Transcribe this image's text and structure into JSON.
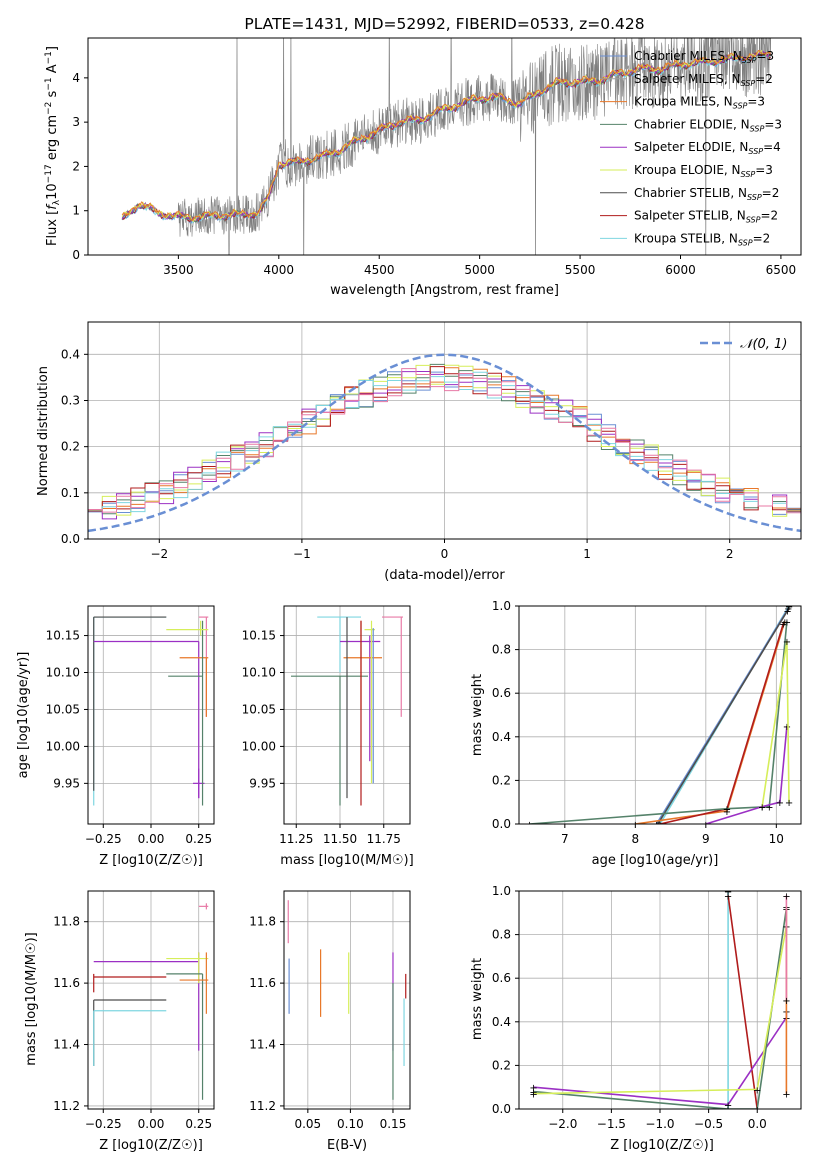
{
  "colors": {
    "Chabrier MILES": "#6a8fd4",
    "Salpeter MILES": "#9e9e9e",
    "Kroupa MILES": "#e8782a",
    "Chabrier ELODIE": "#55826a",
    "Salpeter ELODIE": "#9b30c4",
    "Kroupa ELODIE": "#d6ee5a",
    "Chabrier STELIB": "#4d4d4d",
    "Salpeter STELIB": "#b01c1c",
    "Kroupa STELIB": "#7fd6e0",
    "gaussian": "#6a8fd4",
    "pink": "#e87aa6"
  },
  "chart_data": [
    {
      "id": "spectrum",
      "type": "line",
      "title": "PLATE=1431, MJD=52992, FIBERID=0533, z=0.428",
      "xlabel": "wavelength [Angstrom, rest frame]",
      "ylabel_parts": [
        "Flux [",
        "f",
        "λ",
        "10",
        "−17",
        " erg cm",
        "−2",
        " s",
        "−1",
        " A",
        "−1",
        "]"
      ],
      "xlim": [
        3050,
        6600
      ],
      "ylim": [
        0,
        4.9
      ],
      "xticks": [
        3500,
        4000,
        4500,
        5000,
        5500,
        6000,
        6500
      ],
      "yticks": [
        0,
        1,
        2,
        3,
        4
      ],
      "legend": [
        "Chabrier MILES, N_SSP=3",
        "Salpeter MILES, N_SSP=2",
        "Kroupa MILES, N_SSP=3",
        "Chabrier ELODIE, N_SSP=3",
        "Salpeter ELODIE, N_SSP=4",
        "Kroupa ELODIE, N_SSP=3",
        "Chabrier STELIB, N_SSP=2",
        "Salpeter STELIB, N_SSP=2",
        "Kroupa STELIB, N_SSP=2"
      ],
      "legend_items": [
        {
          "model": "Chabrier MILES",
          "n": "3"
        },
        {
          "model": "Salpeter MILES",
          "n": "2"
        },
        {
          "model": "Kroupa MILES",
          "n": "3"
        },
        {
          "model": "Chabrier ELODIE",
          "n": "3"
        },
        {
          "model": "Salpeter ELODIE",
          "n": "4"
        },
        {
          "model": "Kroupa ELODIE",
          "n": "3"
        },
        {
          "model": "Chabrier STELIB",
          "n": "2"
        },
        {
          "model": "Salpeter STELIB",
          "n": "2"
        },
        {
          "model": "Kroupa STELIB",
          "n": "2"
        }
      ],
      "legend_placement": "upper right",
      "continuum_knots": [
        [
          3220,
          0.8
        ],
        [
          3300,
          1.15
        ],
        [
          3400,
          0.95
        ],
        [
          3500,
          0.85
        ],
        [
          3600,
          0.85
        ],
        [
          3700,
          0.9
        ],
        [
          3800,
          0.9
        ],
        [
          3900,
          0.95
        ],
        [
          3950,
          1.3
        ],
        [
          4000,
          2.05
        ],
        [
          4100,
          2.1
        ],
        [
          4200,
          2.2
        ],
        [
          4300,
          2.35
        ],
        [
          4400,
          2.6
        ],
        [
          4500,
          2.8
        ],
        [
          4600,
          3.0
        ],
        [
          4700,
          3.05
        ],
        [
          4800,
          3.25
        ],
        [
          4900,
          3.4
        ],
        [
          5000,
          3.55
        ],
        [
          5100,
          3.55
        ],
        [
          5200,
          3.4
        ],
        [
          5300,
          3.7
        ],
        [
          5400,
          3.9
        ],
        [
          5500,
          3.9
        ],
        [
          5600,
          3.95
        ],
        [
          5700,
          4.1
        ],
        [
          5800,
          4.2
        ],
        [
          5900,
          4.2
        ],
        [
          6000,
          4.3
        ],
        [
          6100,
          4.35
        ],
        [
          6200,
          4.4
        ],
        [
          6300,
          4.45
        ],
        [
          6400,
          4.5
        ],
        [
          6450,
          4.55
        ]
      ]
    },
    {
      "id": "residuals",
      "type": "histogram",
      "xlabel": "(data-model)/error",
      "ylabel": "Normed distribution",
      "xlim": [
        -2.5,
        2.5
      ],
      "ylim": [
        0,
        0.47
      ],
      "xticks": [
        -2,
        -1,
        0,
        1,
        2
      ],
      "yticks": [
        0.0,
        0.1,
        0.2,
        0.3,
        0.4
      ],
      "grid": true,
      "legend": [
        "𝒩(0, 1)"
      ],
      "legend_placement": "upper right",
      "bin_width": 0.1,
      "models": [
        "Chabrier MILES",
        "Kroupa MILES",
        "Chabrier ELODIE",
        "Salpeter ELODIE",
        "Kroupa ELODIE",
        "Salpeter STELIB",
        "Kroupa STELIB",
        "pink"
      ]
    },
    {
      "id": "age-vs-Z",
      "type": "errorbar",
      "xlabel": "Z [log10(Z/Z☉)]",
      "ylabel": "age  [log10(age/yr)]",
      "xlim": [
        -0.33,
        0.33
      ],
      "ylim": [
        9.895,
        10.19
      ],
      "xticks": [
        -0.25,
        0.0,
        0.25
      ],
      "yticks": [
        9.95,
        10.0,
        10.05,
        10.1,
        10.15
      ],
      "grid": true,
      "bars": [
        {
          "model": "Kroupa STELIB",
          "x": -0.3,
          "xlo": -0.3,
          "xhi": 0.08,
          "y": 10.175,
          "ylo": 9.92,
          "yhi": 10.175
        },
        {
          "model": "Chabrier STELIB",
          "x": -0.3,
          "xlo": -0.3,
          "xhi": 0.08,
          "y": 10.175,
          "ylo": 9.94,
          "yhi": 10.175
        },
        {
          "model": "Salpeter ELODIE",
          "x": 0.25,
          "xlo": -0.3,
          "xhi": 0.25,
          "y": 10.142,
          "ylo": 9.93,
          "yhi": 10.142
        },
        {
          "model": "Salpeter ELODIE",
          "x": 0.25,
          "xlo": 0.22,
          "xhi": 0.28,
          "y": 9.95,
          "ylo": 9.93,
          "yhi": 9.97
        },
        {
          "model": "pink",
          "x": 0.29,
          "xlo": 0.25,
          "xhi": 0.3,
          "y": 10.175,
          "ylo": 10.04,
          "yhi": 10.175
        },
        {
          "model": "Kroupa MILES",
          "x": 0.29,
          "xlo": 0.15,
          "xhi": 0.3,
          "y": 10.12,
          "ylo": 10.04,
          "yhi": 10.12
        },
        {
          "model": "Chabrier ELODIE",
          "x": 0.27,
          "xlo": 0.09,
          "xhi": 0.27,
          "y": 10.095,
          "ylo": 9.92,
          "yhi": 10.17
        },
        {
          "model": "Kroupa ELODIE",
          "x": 0.26,
          "xlo": 0.08,
          "xhi": 0.3,
          "y": 10.158,
          "ylo": 10.15,
          "yhi": 10.17
        }
      ]
    },
    {
      "id": "age-vs-mass",
      "type": "errorbar",
      "xlabel": "mass [log10(M/M☉)]",
      "ylabel": "",
      "xlim": [
        11.18,
        11.9
      ],
      "ylim": [
        9.895,
        10.19
      ],
      "xticks": [
        11.25,
        11.5,
        11.75
      ],
      "yticks": [
        9.95,
        10.0,
        10.05,
        10.1,
        10.15
      ],
      "grid": true,
      "bars": [
        {
          "model": "Kroupa STELIB",
          "x": 11.5,
          "xlo": 11.37,
          "xhi": 11.62,
          "y": 10.175,
          "ylo": 10.1,
          "yhi": 10.175
        },
        {
          "model": "Chabrier ELODIE",
          "x": 11.5,
          "xlo": 11.22,
          "xhi": 11.66,
          "y": 10.095,
          "ylo": 9.92,
          "yhi": 10.095
        },
        {
          "model": "Salpeter ELODIE",
          "x": 11.67,
          "xlo": 11.5,
          "xhi": 11.73,
          "y": 10.142,
          "ylo": 9.98,
          "yhi": 10.15
        },
        {
          "model": "Kroupa MILES",
          "x": 11.62,
          "xlo": 11.52,
          "xhi": 11.74,
          "y": 10.12,
          "ylo": 10.05,
          "yhi": 10.17
        },
        {
          "model": "Salpeter STELIB",
          "x": 11.62,
          "xlo": 11.62,
          "xhi": 11.62,
          "y": 10.05,
          "ylo": 9.92,
          "yhi": 10.17
        },
        {
          "model": "Chabrier STELIB",
          "x": 11.54,
          "xlo": 11.54,
          "xhi": 11.54,
          "y": 10.1,
          "ylo": 9.93,
          "yhi": 10.175
        },
        {
          "model": "pink",
          "x": 11.85,
          "xlo": 11.74,
          "xhi": 11.86,
          "y": 10.175,
          "ylo": 10.04,
          "yhi": 10.175
        },
        {
          "model": "Kroupa ELODIE",
          "x": 11.68,
          "xlo": 11.64,
          "xhi": 11.7,
          "y": 10.158,
          "ylo": 9.95,
          "yhi": 10.17
        },
        {
          "model": "Chabrier MILES",
          "x": 11.69,
          "xlo": 11.69,
          "xhi": 11.69,
          "y": 10.1,
          "ylo": 9.95,
          "yhi": 10.16
        }
      ]
    },
    {
      "id": "weight-vs-age",
      "type": "line",
      "xlabel": "age  [log10(age/yr)]",
      "ylabel": "mass weight",
      "xlim": [
        6.35,
        10.35
      ],
      "ylim": [
        0,
        1.0
      ],
      "xticks": [
        7,
        8,
        9,
        10
      ],
      "yticks": [
        0.0,
        0.2,
        0.4,
        0.6,
        0.8,
        1.0
      ],
      "grid": true,
      "series": [
        {
          "model": "Kroupa STELIB",
          "x": [
            8.35,
            10.18
          ],
          "y": [
            0.0,
            1.0
          ]
        },
        {
          "model": "Chabrier MILES",
          "x": [
            8.3,
            10.17
          ],
          "y": [
            0.0,
            0.99
          ]
        },
        {
          "model": "Chabrier STELIB",
          "x": [
            8.32,
            10.16
          ],
          "y": [
            0.0,
            0.98
          ]
        },
        {
          "model": "Kroupa MILES",
          "x": [
            8.0,
            9.3,
            10.12
          ],
          "y": [
            0.0,
            0.06,
            0.93
          ]
        },
        {
          "model": "Salpeter STELIB",
          "x": [
            8.35,
            9.3,
            10.1
          ],
          "y": [
            0.0,
            0.07,
            0.92
          ]
        },
        {
          "model": "Chabrier ELODIE",
          "x": [
            6.5,
            9.3,
            9.9,
            10.15
          ],
          "y": [
            0.0,
            0.07,
            0.08,
            0.93
          ]
        },
        {
          "model": "Salpeter ELODIE",
          "x": [
            9.0,
            9.8,
            10.05,
            10.15
          ],
          "y": [
            0.0,
            0.08,
            0.1,
            0.45
          ]
        },
        {
          "model": "Kroupa ELODIE",
          "x": [
            9.8,
            10.15,
            10.18
          ],
          "y": [
            0.08,
            0.84,
            0.1
          ]
        }
      ]
    },
    {
      "id": "mass-vs-Z",
      "type": "errorbar",
      "xlabel": "Z [log10(Z/Z☉)]",
      "ylabel": "mass [log10(M/M☉)]",
      "xlim": [
        -0.33,
        0.33
      ],
      "ylim": [
        11.19,
        11.9
      ],
      "xticks": [
        -0.25,
        0.0,
        0.25
      ],
      "yticks": [
        11.2,
        11.4,
        11.6,
        11.8
      ],
      "grid": true,
      "bars": [
        {
          "model": "Salpeter ELODIE",
          "x": 0.25,
          "xlo": -0.3,
          "xhi": 0.25,
          "y": 11.67,
          "ylo": 11.38,
          "yhi": 11.7
        },
        {
          "model": "Kroupa ELODIE",
          "x": 0.25,
          "xlo": 0.08,
          "xhi": 0.3,
          "y": 11.68,
          "ylo": 11.6,
          "yhi": 11.7
        },
        {
          "model": "Salpeter STELIB",
          "x": -0.3,
          "xlo": -0.3,
          "xhi": 0.08,
          "y": 11.62,
          "ylo": 11.57,
          "yhi": 11.63
        },
        {
          "model": "Chabrier ELODIE",
          "x": 0.27,
          "xlo": 0.08,
          "xhi": 0.27,
          "y": 11.63,
          "ylo": 11.22,
          "yhi": 11.63
        },
        {
          "model": "Kroupa MILES",
          "x": 0.29,
          "xlo": 0.15,
          "xhi": 0.3,
          "y": 11.61,
          "ylo": 11.5,
          "yhi": 11.7
        },
        {
          "model": "Chabrier STELIB",
          "x": -0.3,
          "xlo": -0.3,
          "xhi": 0.08,
          "y": 11.545,
          "ylo": 11.33,
          "yhi": 11.545
        },
        {
          "model": "Kroupa STELIB",
          "x": -0.3,
          "xlo": -0.3,
          "xhi": 0.08,
          "y": 11.51,
          "ylo": 11.33,
          "yhi": 11.51
        },
        {
          "model": "pink",
          "x": 0.29,
          "xlo": 0.25,
          "xhi": 0.3,
          "y": 11.85,
          "ylo": 11.84,
          "yhi": 11.86
        }
      ]
    },
    {
      "id": "mass-vs-EBV",
      "type": "errorbar",
      "xlabel": "E(B-V)",
      "ylabel": "",
      "xlim": [
        0.022,
        0.17
      ],
      "ylim": [
        11.19,
        11.9
      ],
      "xticks": [
        0.05,
        0.1,
        0.15
      ],
      "yticks": [
        11.2,
        11.4,
        11.6,
        11.8
      ],
      "grid": true,
      "bars": [
        {
          "model": "pink",
          "x": 0.027,
          "xlo": 0.027,
          "xhi": 0.027,
          "y": 11.8,
          "ylo": 11.73,
          "yhi": 11.87
        },
        {
          "model": "Chabrier MILES",
          "x": 0.028,
          "xlo": 0.028,
          "xhi": 0.028,
          "y": 11.6,
          "ylo": 11.5,
          "yhi": 11.68
        },
        {
          "model": "Kroupa MILES",
          "x": 0.065,
          "xlo": 0.065,
          "xhi": 0.065,
          "y": 11.6,
          "ylo": 11.49,
          "yhi": 11.71
        },
        {
          "model": "Kroupa ELODIE",
          "x": 0.098,
          "xlo": 0.098,
          "xhi": 0.098,
          "y": 11.6,
          "ylo": 11.5,
          "yhi": 11.7
        },
        {
          "model": "Salpeter ELODIE",
          "x": 0.15,
          "xlo": 0.15,
          "xhi": 0.15,
          "y": 11.55,
          "ylo": 11.38,
          "yhi": 11.7
        },
        {
          "model": "Chabrier ELODIE",
          "x": 0.15,
          "xlo": 0.15,
          "xhi": 0.15,
          "y": 11.4,
          "ylo": 11.22,
          "yhi": 11.6
        },
        {
          "model": "Salpeter STELIB",
          "x": 0.165,
          "xlo": 0.165,
          "xhi": 0.165,
          "y": 11.6,
          "ylo": 11.55,
          "yhi": 11.63
        },
        {
          "model": "Kroupa STELIB",
          "x": 0.163,
          "xlo": 0.163,
          "xhi": 0.163,
          "y": 11.45,
          "ylo": 11.33,
          "yhi": 11.55
        }
      ]
    },
    {
      "id": "weight-vs-Z",
      "type": "line",
      "xlabel": "Z [log10(Z/Z☉)]",
      "ylabel": "mass weight",
      "xlim": [
        -2.45,
        0.45
      ],
      "ylim": [
        0,
        1.0
      ],
      "xticks": [
        -2.0,
        -1.5,
        -1.0,
        -0.5,
        0.0
      ],
      "yticks": [
        0.0,
        0.2,
        0.4,
        0.6,
        0.8,
        1.0
      ],
      "grid": true,
      "series": [
        {
          "model": "Kroupa STELIB",
          "x": [
            -0.3,
            -0.3
          ],
          "y": [
            0.0,
            1.0
          ]
        },
        {
          "model": "Salpeter STELIB",
          "x": [
            -0.3,
            0.0
          ],
          "y": [
            0.98,
            0.0
          ]
        },
        {
          "model": "Salpeter ELODIE",
          "x": [
            -2.3,
            -0.3,
            0.3,
            0.3
          ],
          "y": [
            0.1,
            0.02,
            0.42,
            0.45
          ]
        },
        {
          "model": "Chabrier ELODIE",
          "x": [
            -2.3,
            -0.3,
            0.0,
            0.3
          ],
          "y": [
            0.08,
            0.0,
            0.0,
            0.92
          ]
        },
        {
          "model": "Kroupa ELODIE",
          "x": [
            -2.3,
            0.0,
            0.3
          ],
          "y": [
            0.07,
            0.09,
            0.84
          ]
        },
        {
          "model": "Kroupa MILES",
          "x": [
            0.3,
            0.3
          ],
          "y": [
            0.07,
            0.93
          ]
        },
        {
          "model": "pink",
          "x": [
            0.3,
            0.3
          ],
          "y": [
            0.5,
            0.98
          ]
        }
      ]
    }
  ]
}
